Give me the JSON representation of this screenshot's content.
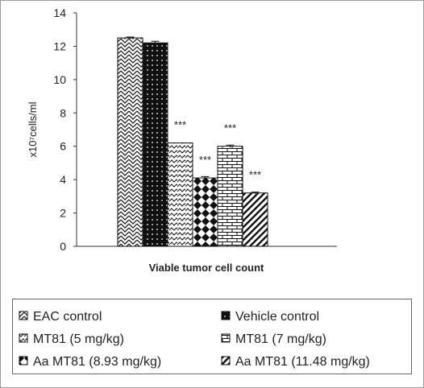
{
  "chart_data": {
    "type": "bar",
    "title": "",
    "xlabel": "Viable tumor cell count",
    "ylabel": "x10⁷cells/ml",
    "ylim": [
      0,
      14
    ],
    "yticks": [
      0,
      2,
      4,
      6,
      8,
      10,
      12,
      14
    ],
    "grid": false,
    "legend_position": "bottom",
    "series": [
      {
        "name": "EAC control",
        "value": 12.5,
        "error": 0.05,
        "annotation": "",
        "pattern": "zigzag"
      },
      {
        "name": "Vehicle control",
        "value": 12.2,
        "error": 0.1,
        "annotation": "",
        "pattern": "dots-dark"
      },
      {
        "name": "MT81 (5 mg/kg)",
        "value": 6.2,
        "error": 0.0,
        "annotation": "***",
        "pattern": "wave"
      },
      {
        "name": "Aa MT81 (8.93 mg/kg)",
        "value": 4.1,
        "error": 0.08,
        "annotation": "***",
        "pattern": "diamond"
      },
      {
        "name": "MT81 (7 mg/kg)",
        "value": 6.0,
        "error": 0.07,
        "annotation": "***",
        "pattern": "brick"
      },
      {
        "name": "Aa MT81 (11.48 mg/kg)",
        "value": 3.2,
        "error": 0.05,
        "annotation": "***",
        "pattern": "diagonal"
      }
    ],
    "legend": [
      {
        "label": "EAC control",
        "pattern": "zigzag"
      },
      {
        "label": "Vehicle control",
        "pattern": "dots-dark"
      },
      {
        "label": "MT81 (5 mg/kg)",
        "pattern": "wave"
      },
      {
        "label": "MT81 (7 mg/kg)",
        "pattern": "brick"
      },
      {
        "label": "Aa MT81 (8.93 mg/kg)",
        "pattern": "diamond"
      },
      {
        "label": "Aa MT81 (11.48 mg/kg)",
        "pattern": "diagonal"
      }
    ]
  },
  "colors": {
    "ink": "#111111",
    "frame": "#9a9a9a",
    "background": "#ffffff"
  }
}
